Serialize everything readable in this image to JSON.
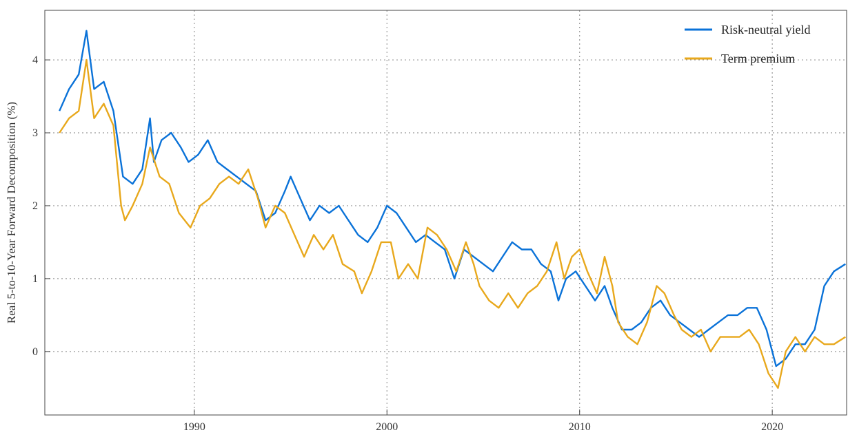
{
  "chart_data": {
    "type": "line",
    "y_label": "Real 5-to-10-Year Forward Decomposition (%)",
    "xlim": [
      1982.24,
      2023.86
    ],
    "ylim": [
      -0.87,
      4.68
    ],
    "xticks": [
      1990,
      2000,
      2010,
      2020
    ],
    "yticks": [
      0,
      1,
      2,
      3,
      4
    ],
    "grid": true,
    "legend": "upper right",
    "series": [
      {
        "name": "Risk-neutral yield",
        "color": "#0a72d8",
        "x": [
          1983.0,
          1983.5,
          1984.0,
          1984.4,
          1984.8,
          1985.3,
          1985.8,
          1986.3,
          1986.8,
          1987.3,
          1987.7,
          1987.9,
          1988.3,
          1988.8,
          1989.3,
          1989.7,
          1990.2,
          1990.7,
          1991.2,
          1991.7,
          1992.2,
          1992.7,
          1993.2,
          1993.7,
          1994.2,
          1994.7,
          1995.0,
          1995.5,
          1996.0,
          1996.5,
          1997.0,
          1997.5,
          1998.0,
          1998.5,
          1999.0,
          1999.5,
          2000.0,
          2000.5,
          2001.0,
          2001.5,
          2002.0,
          2002.5,
          2003.0,
          2003.5,
          2004.0,
          2004.5,
          2005.0,
          2005.5,
          2006.0,
          2006.5,
          2007.0,
          2007.5,
          2008.0,
          2008.5,
          2008.9,
          2009.3,
          2009.8,
          2010.3,
          2010.8,
          2011.3,
          2011.7,
          2012.2,
          2012.7,
          2013.2,
          2013.7,
          2014.2,
          2014.7,
          2015.2,
          2015.7,
          2016.2,
          2016.7,
          2017.2,
          2017.7,
          2018.2,
          2018.7,
          2019.2,
          2019.7,
          2020.2,
          2020.7,
          2021.2,
          2021.7,
          2022.2,
          2022.7,
          2023.2,
          2023.8
        ],
        "values": [
          3.3,
          3.6,
          3.8,
          4.4,
          3.6,
          3.7,
          3.3,
          2.4,
          2.3,
          2.5,
          3.2,
          2.6,
          2.9,
          3.0,
          2.8,
          2.6,
          2.7,
          2.9,
          2.6,
          2.5,
          2.4,
          2.3,
          2.2,
          1.8,
          1.9,
          2.2,
          2.4,
          2.1,
          1.8,
          2.0,
          1.9,
          2.0,
          1.8,
          1.6,
          1.5,
          1.7,
          2.0,
          1.9,
          1.7,
          1.5,
          1.6,
          1.5,
          1.4,
          1.0,
          1.4,
          1.3,
          1.2,
          1.1,
          1.3,
          1.5,
          1.4,
          1.4,
          1.2,
          1.1,
          0.7,
          1.0,
          1.1,
          0.9,
          0.7,
          0.9,
          0.6,
          0.3,
          0.3,
          0.4,
          0.6,
          0.7,
          0.5,
          0.4,
          0.3,
          0.2,
          0.3,
          0.4,
          0.5,
          0.5,
          0.6,
          0.6,
          0.3,
          -0.2,
          -0.1,
          0.1,
          0.1,
          0.3,
          0.9,
          1.1,
          1.2
        ]
      },
      {
        "name": "Term premium",
        "color": "#e8a81c",
        "x": [
          1983.0,
          1983.5,
          1984.0,
          1984.4,
          1984.8,
          1985.3,
          1985.8,
          1986.2,
          1986.4,
          1986.8,
          1987.3,
          1987.7,
          1988.2,
          1988.7,
          1989.2,
          1989.8,
          1990.3,
          1990.8,
          1991.3,
          1991.8,
          1992.3,
          1992.8,
          1993.3,
          1993.7,
          1994.2,
          1994.7,
          1995.2,
          1995.7,
          1996.2,
          1996.7,
          1997.2,
          1997.7,
          1998.3,
          1998.7,
          1999.2,
          1999.7,
          2000.2,
          2000.6,
          2001.1,
          2001.6,
          2002.1,
          2002.6,
          2003.1,
          2003.6,
          2004.1,
          2004.5,
          2004.8,
          2005.3,
          2005.8,
          2006.3,
          2006.8,
          2007.3,
          2007.8,
          2008.3,
          2008.8,
          2009.2,
          2009.6,
          2010.0,
          2010.4,
          2010.9,
          2011.3,
          2011.7,
          2012.0,
          2012.5,
          2013.0,
          2013.5,
          2014.0,
          2014.4,
          2014.9,
          2015.3,
          2015.8,
          2016.3,
          2016.8,
          2017.3,
          2017.8,
          2018.3,
          2018.8,
          2019.3,
          2019.8,
          2020.3,
          2020.7,
          2021.2,
          2021.7,
          2022.2,
          2022.7,
          2023.2,
          2023.8
        ],
        "values": [
          3.0,
          3.2,
          3.3,
          4.0,
          3.2,
          3.4,
          3.1,
          2.0,
          1.8,
          2.0,
          2.3,
          2.8,
          2.4,
          2.3,
          1.9,
          1.7,
          2.0,
          2.1,
          2.3,
          2.4,
          2.3,
          2.5,
          2.1,
          1.7,
          2.0,
          1.9,
          1.6,
          1.3,
          1.6,
          1.4,
          1.6,
          1.2,
          1.1,
          0.8,
          1.1,
          1.5,
          1.5,
          1.0,
          1.2,
          1.0,
          1.7,
          1.6,
          1.4,
          1.1,
          1.5,
          1.2,
          0.9,
          0.7,
          0.6,
          0.8,
          0.6,
          0.8,
          0.9,
          1.1,
          1.5,
          1.0,
          1.3,
          1.4,
          1.1,
          0.8,
          1.3,
          0.9,
          0.4,
          0.2,
          0.1,
          0.4,
          0.9,
          0.8,
          0.5,
          0.3,
          0.2,
          0.3,
          0.0,
          0.2,
          0.2,
          0.2,
          0.3,
          0.1,
          -0.3,
          -0.5,
          0.0,
          0.2,
          0.0,
          0.2,
          0.1,
          0.1,
          0.2
        ]
      }
    ]
  }
}
